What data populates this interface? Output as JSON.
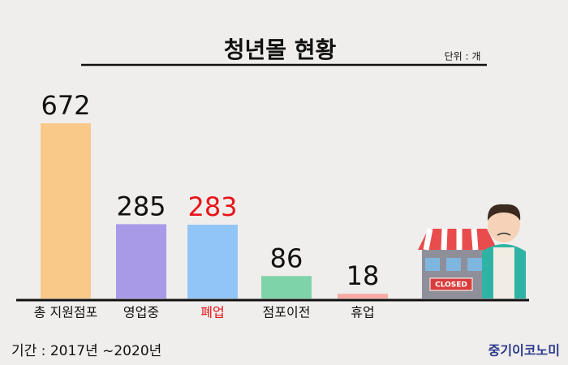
{
  "chart_data": {
    "type": "bar",
    "title": "청년몰 현황",
    "unit": "단위 : 개",
    "categories": [
      "총 지원점포",
      "영업중",
      "폐업",
      "점포이전",
      "휴업"
    ],
    "values": [
      672,
      285,
      283,
      86,
      18
    ],
    "colors": [
      "#f9c98a",
      "#a99ae8",
      "#92c5f7",
      "#7fd3a8",
      "#f8a9a6"
    ],
    "label_colors": [
      "#111111",
      "#111111",
      "#e8141a",
      "#111111",
      "#111111"
    ],
    "period": "기간 : 2017년 ~2020년",
    "source": "중기이코노미",
    "sign": "CLOSED"
  }
}
